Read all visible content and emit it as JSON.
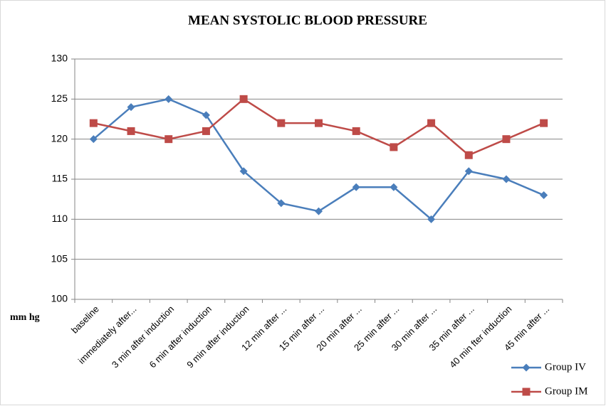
{
  "chart_data": {
    "type": "line",
    "title": "MEAN SYSTOLIC BLOOD PRESSURE",
    "y_label": "mm hg",
    "categories": [
      "baseline",
      "immediately after...",
      "3 min after induction",
      "6 min after induction",
      "9 min after induction",
      "12 min after ...",
      "15 min after ...",
      "20 min after ...",
      "25 min after ...",
      "30 min after ...",
      "35 min after ...",
      "40 min fter induction",
      "45 min after ..."
    ],
    "series": [
      {
        "name": "Group IV",
        "color": "#4a7ebb",
        "marker": "diamond",
        "values": [
          120,
          124,
          125,
          123,
          116,
          112,
          111,
          114,
          114,
          110,
          116,
          115,
          113
        ]
      },
      {
        "name": "Group IM",
        "color": "#be4b48",
        "marker": "square",
        "values": [
          122,
          121,
          120,
          121,
          125,
          122,
          122,
          121,
          119,
          122,
          118,
          120,
          122
        ]
      }
    ],
    "ylim": [
      100,
      130
    ],
    "yticks": [
      100,
      105,
      110,
      115,
      120,
      125,
      130
    ],
    "grid": true,
    "legend": "bottom-right"
  }
}
